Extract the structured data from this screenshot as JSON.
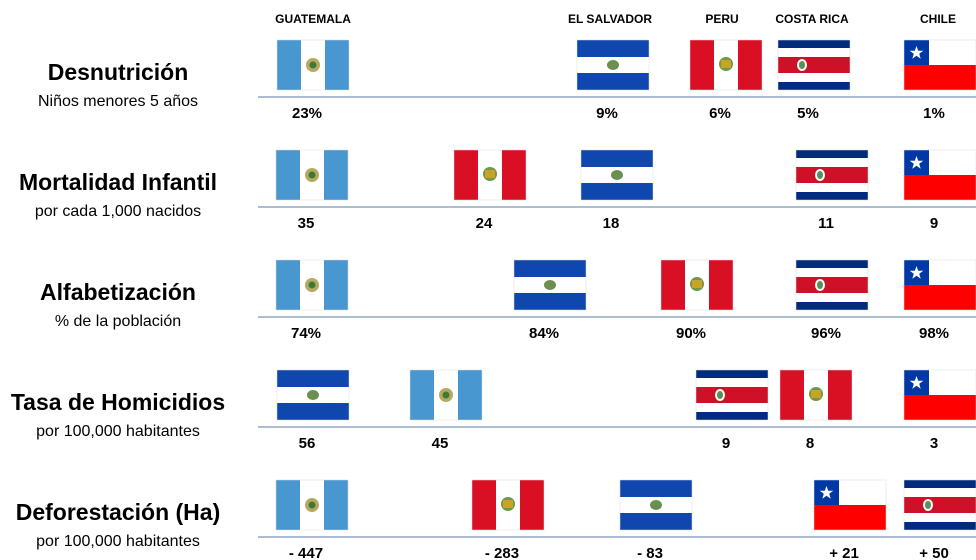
{
  "columns": [
    "GUATEMALA",
    "EL SALVADOR",
    "PERU",
    "COSTA RICA",
    "CHILE"
  ],
  "rows": [
    {
      "title": "Desnutrición",
      "subtitle": "Niños menores  5 años",
      "items": [
        {
          "country": "GUATEMALA",
          "value": "23%"
        },
        {
          "country": "EL SALVADOR",
          "value": "9%"
        },
        {
          "country": "PERU",
          "value": "6%"
        },
        {
          "country": "COSTA RICA",
          "value": "5%"
        },
        {
          "country": "CHILE",
          "value": "1%"
        }
      ]
    },
    {
      "title": "Mortalidad Infantil",
      "subtitle": "por cada 1,000 nacidos",
      "items": [
        {
          "country": "GUATEMALA",
          "value": "35"
        },
        {
          "country": "PERU",
          "value": "24"
        },
        {
          "country": "EL SALVADOR",
          "value": "18"
        },
        {
          "country": "COSTA RICA",
          "value": "11"
        },
        {
          "country": "CHILE",
          "value": "9"
        }
      ]
    },
    {
      "title": "Alfabetización",
      "subtitle": "% de la población",
      "items": [
        {
          "country": "GUATEMALA",
          "value": "74%"
        },
        {
          "country": "EL SALVADOR",
          "value": "84%"
        },
        {
          "country": "PERU",
          "value": "90%"
        },
        {
          "country": "COSTA RICA",
          "value": "96%"
        },
        {
          "country": "CHILE",
          "value": "98%"
        }
      ]
    },
    {
      "title": "Tasa de Homicidios",
      "subtitle": "por 100,000 habitantes",
      "items": [
        {
          "country": "EL SALVADOR",
          "value": "56"
        },
        {
          "country": "GUATEMALA",
          "value": "45"
        },
        {
          "country": "COSTA RICA",
          "value": "9"
        },
        {
          "country": "PERU",
          "value": "8"
        },
        {
          "country": "CHILE",
          "value": "3"
        }
      ]
    },
    {
      "title": "Deforestación (Ha)",
      "subtitle": "por 100,000 habitantes",
      "items": [
        {
          "country": "GUATEMALA",
          "value": "- 447"
        },
        {
          "country": "PERU",
          "value": "- 283"
        },
        {
          "country": "EL SALVADOR",
          "value": "- 83"
        },
        {
          "country": "CHILE",
          "value": "+ 21"
        },
        {
          "country": "COSTA RICA",
          "value": "+ 50"
        }
      ]
    }
  ]
}
